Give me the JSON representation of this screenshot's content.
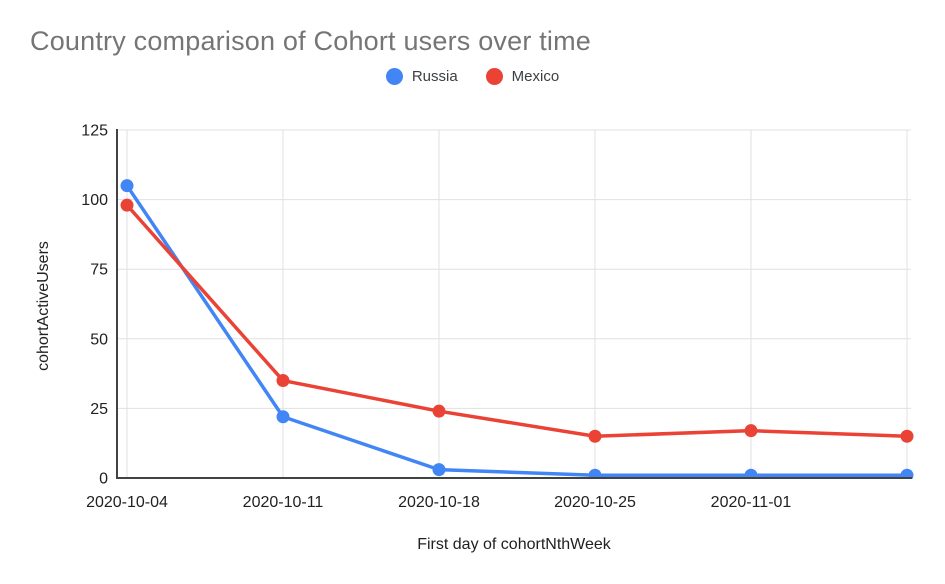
{
  "chart_data": {
    "type": "line",
    "title": "Country comparison of Cohort users over time",
    "xlabel": "First day of cohortNthWeek",
    "ylabel": "cohortActiveUsers",
    "x_tick_labels": [
      "2020-10-04",
      "2020-10-11",
      "2020-10-18",
      "2020-10-25",
      "2020-11-01",
      ""
    ],
    "y_ticks": [
      0,
      25,
      50,
      75,
      100,
      125
    ],
    "ylim": [
      0,
      125
    ],
    "grid": true,
    "legend_position": "top-center",
    "series": [
      {
        "name": "Russia",
        "color": "#4285F4",
        "values": [
          105,
          22,
          3,
          1,
          1,
          1
        ]
      },
      {
        "name": "Mexico",
        "color": "#EA4335",
        "values": [
          98,
          35,
          24,
          15,
          17,
          15
        ]
      }
    ],
    "colors": {
      "grid": "#e0e0e0",
      "axis": "#424242",
      "tick": "#212121",
      "title": "#757575",
      "background": "#ffffff"
    }
  }
}
